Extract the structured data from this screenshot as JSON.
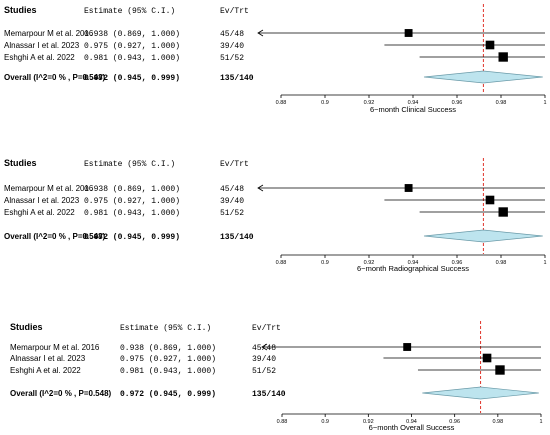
{
  "colors": {
    "ci_line": "#000000",
    "marker": "#000000",
    "diamond_fill": "#bde4ee",
    "diamond_stroke": "#6a9aa8",
    "reference_line": "#e0342b"
  },
  "chart_data": [
    {
      "type": "forest",
      "headers": {
        "studies": "Studies",
        "estimate": "Estimate (95% C.I.)",
        "ev_trt": "Ev/Trt"
      },
      "xlabel": "6−month Clinical Success",
      "xlim": [
        0.88,
        1.0
      ],
      "ticks": [
        0.88,
        0.9,
        0.92,
        0.94,
        0.96,
        0.98,
        1.0
      ],
      "tick_labels": [
        "0.88",
        "0.9",
        "0.92",
        "0.94",
        "0.96",
        "0.98",
        "1"
      ],
      "reference_line": 0.972,
      "studies": [
        {
          "name": "Memarpour M et al. 2016",
          "estimate_text": "0.938 (0.869, 1.000)",
          "events": "45/48",
          "est": 0.938,
          "lo": 0.869,
          "hi": 1.0,
          "weight": 0.6
        },
        {
          "name": "Alnassar I et al. 2023",
          "estimate_text": "0.975 (0.927, 1.000)",
          "events": "39/40",
          "est": 0.975,
          "lo": 0.927,
          "hi": 1.0,
          "weight": 0.8
        },
        {
          "name": "Eshghi A et al. 2022",
          "estimate_text": "0.981 (0.943, 1.000)",
          "events": "51/52",
          "est": 0.981,
          "lo": 0.943,
          "hi": 1.0,
          "weight": 1.0
        }
      ],
      "overall": {
        "name": "Overall (I^2=0 % , P=0.548)",
        "estimate_text": "0.972 (0.945, 0.999)",
        "events": "135/140",
        "est": 0.972,
        "lo": 0.945,
        "hi": 0.999
      }
    },
    {
      "type": "forest",
      "headers": {
        "studies": "Studies",
        "estimate": "Estimate (95% C.I.)",
        "ev_trt": "Ev/Trt"
      },
      "xlabel": "6−month Radiographical Success",
      "xlim": [
        0.88,
        1.0
      ],
      "ticks": [
        0.88,
        0.9,
        0.92,
        0.94,
        0.96,
        0.98,
        1.0
      ],
      "tick_labels": [
        "0.88",
        "0.9",
        "0.92",
        "0.94",
        "0.96",
        "0.98",
        "1"
      ],
      "reference_line": 0.972,
      "studies": [
        {
          "name": "Memarpour M et al. 2016",
          "estimate_text": "0.938 (0.869, 1.000)",
          "events": "45/48",
          "est": 0.938,
          "lo": 0.869,
          "hi": 1.0,
          "weight": 0.6
        },
        {
          "name": "Alnassar I et al. 2023",
          "estimate_text": "0.975 (0.927, 1.000)",
          "events": "39/40",
          "est": 0.975,
          "lo": 0.927,
          "hi": 1.0,
          "weight": 0.8
        },
        {
          "name": "Eshghi A et al. 2022",
          "estimate_text": "0.981 (0.943, 1.000)",
          "events": "51/52",
          "est": 0.981,
          "lo": 0.943,
          "hi": 1.0,
          "weight": 1.0
        }
      ],
      "overall": {
        "name": "Overall (I^2=0 % , P=0.548)",
        "estimate_text": "0.972 (0.945, 0.999)",
        "events": "135/140",
        "est": 0.972,
        "lo": 0.945,
        "hi": 0.999
      }
    },
    {
      "type": "forest",
      "headers": {
        "studies": "Studies",
        "estimate": "Estimate (95% C.I.)",
        "ev_trt": "Ev/Trt"
      },
      "xlabel": "6−month Overall Success",
      "xlim": [
        0.88,
        1.0
      ],
      "ticks": [
        0.88,
        0.9,
        0.92,
        0.94,
        0.96,
        0.98,
        1.0
      ],
      "tick_labels": [
        "0.88",
        "0.9",
        "0.92",
        "0.94",
        "0.96",
        "0.98",
        "1"
      ],
      "reference_line": 0.972,
      "studies": [
        {
          "name": "Memarpour M et al. 2016",
          "estimate_text": "0.938 (0.869, 1.000)",
          "events": "45/48",
          "est": 0.938,
          "lo": 0.869,
          "hi": 1.0,
          "weight": 0.6
        },
        {
          "name": "Alnassar I et al. 2023",
          "estimate_text": "0.975 (0.927, 1.000)",
          "events": "39/40",
          "est": 0.975,
          "lo": 0.927,
          "hi": 1.0,
          "weight": 0.8
        },
        {
          "name": "Eshghi A et al. 2022",
          "estimate_text": "0.981 (0.943, 1.000)",
          "events": "51/52",
          "est": 0.981,
          "lo": 0.943,
          "hi": 1.0,
          "weight": 1.0
        }
      ],
      "overall": {
        "name": "Overall (I^2=0 % , P=0.548)",
        "estimate_text": "0.972 (0.945, 0.999)",
        "events": "135/140",
        "est": 0.972,
        "lo": 0.945,
        "hi": 0.999
      }
    }
  ]
}
